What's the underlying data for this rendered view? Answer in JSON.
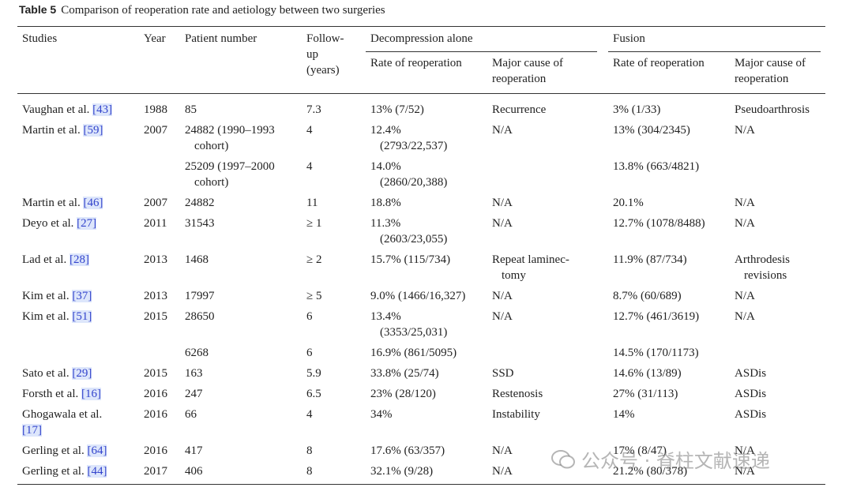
{
  "caption": {
    "label": "Table 5",
    "text": "Comparison of reoperation rate and aetiology between two surgeries"
  },
  "header": {
    "studies": "Studies",
    "year": "Year",
    "patient_number": "Patient number",
    "follow_up": [
      "Follow-",
      "up",
      "(years)"
    ],
    "decompression": {
      "title": "Decompression alone",
      "rate": "Rate of reoperation",
      "cause": [
        "Major cause of",
        "reoperation"
      ]
    },
    "fusion": {
      "title": "Fusion",
      "rate": "Rate of reoperation",
      "cause": [
        "Major cause of",
        "reoperation"
      ]
    }
  },
  "table": {
    "rows": [
      {
        "study": "Vaughan et al.",
        "ref": "[43]",
        "year": "1988",
        "patients": "85",
        "follow_up": "7.3",
        "d_rate": "13% (7/52)",
        "d_cause": "Recurrence",
        "f_rate": "3% (1/33)",
        "f_cause": "Pseudoarthrosis"
      },
      {
        "study": "Martin et al.",
        "ref": "[59]",
        "year": "2007",
        "patients": [
          "24882 (1990–1993",
          "cohort)"
        ],
        "follow_up": "4",
        "d_rate": [
          "12.4%",
          "(2793/22,537)"
        ],
        "d_cause": "N/A",
        "f_rate": "13% (304/2345)",
        "f_cause": "N/A"
      },
      {
        "patients": [
          "25209 (1997–2000",
          "cohort)"
        ],
        "follow_up": "4",
        "d_rate": [
          "14.0%",
          "(2860/20,388)"
        ],
        "f_rate": "13.8% (663/4821)"
      },
      {
        "study": "Martin et al.",
        "ref": "[46]",
        "year": "2007",
        "patients": "24882",
        "follow_up": "11",
        "d_rate": "18.8%",
        "d_cause": "N/A",
        "f_rate": "20.1%",
        "f_cause": "N/A"
      },
      {
        "study": "Deyo et al.",
        "ref": "[27]",
        "year": "2011",
        "patients": "31543",
        "follow_up": "≥ 1",
        "d_rate": [
          "11.3%",
          "(2603/23,055)"
        ],
        "d_cause": "N/A",
        "f_rate": "12.7% (1078/8488)",
        "f_cause": "N/A"
      },
      {
        "study": "Lad et al.",
        "ref": "[28]",
        "year": "2013",
        "patients": "1468",
        "follow_up": "≥ 2",
        "d_rate": "15.7% (115/734)",
        "d_cause": [
          "Repeat laminec-",
          "tomy"
        ],
        "f_rate": "11.9% (87/734)",
        "f_cause": [
          "Arthrodesis",
          "revisions"
        ]
      },
      {
        "study": "Kim et al.",
        "ref": "[37]",
        "year": "2013",
        "patients": "17997",
        "follow_up": "≥ 5",
        "d_rate": "9.0% (1466/16,327)",
        "d_cause": "N/A",
        "f_rate": "8.7% (60/689)",
        "f_cause": "N/A"
      },
      {
        "study": "Kim et al.",
        "ref": "[51]",
        "year": "2015",
        "patients": "28650",
        "follow_up": "6",
        "d_rate": [
          "13.4%",
          "(3353/25,031)"
        ],
        "d_cause": "N/A",
        "f_rate": "12.7% (461/3619)",
        "f_cause": "N/A"
      },
      {
        "patients": "6268",
        "follow_up": "6",
        "d_rate": "16.9% (861/5095)",
        "f_rate": "14.5% (170/1173)"
      },
      {
        "study": "Sato et al.",
        "ref": "[29]",
        "year": "2015",
        "patients": "163",
        "follow_up": "5.9",
        "d_rate": "33.8% (25/74)",
        "d_cause": "SSD",
        "f_rate": "14.6% (13/89)",
        "f_cause": "ASDis"
      },
      {
        "study": "Forsth et al.",
        "ref": "[16]",
        "year": "2016",
        "patients": "247",
        "follow_up": "6.5",
        "d_rate": "23% (28/120)",
        "d_cause": "Restenosis",
        "f_rate": "27% (31/113)",
        "f_cause": "ASDis"
      },
      {
        "study": "Ghogawala et al.",
        "ref": "[17]",
        "year": "2016",
        "patients": "66",
        "follow_up": "4",
        "d_rate": "34%",
        "d_cause": "Instability",
        "f_rate": "14%",
        "f_cause": "ASDis"
      },
      {
        "study": "Gerling et al.",
        "ref": "[64]",
        "year": "2016",
        "patients": "417",
        "follow_up": "8",
        "d_rate": "17.6% (63/357)",
        "d_cause": "N/A",
        "f_rate": "17% (8/47)",
        "f_cause": "N/A"
      },
      {
        "study": "Gerling et al.",
        "ref": "[44]",
        "year": "2017",
        "patients": "406",
        "follow_up": "8",
        "d_rate": "32.1% (9/28)",
        "d_cause": "N/A",
        "f_rate": "21.2% (80/378)",
        "f_cause": "N/A"
      }
    ]
  },
  "watermark": "公众号 · 脊柱文献速递"
}
